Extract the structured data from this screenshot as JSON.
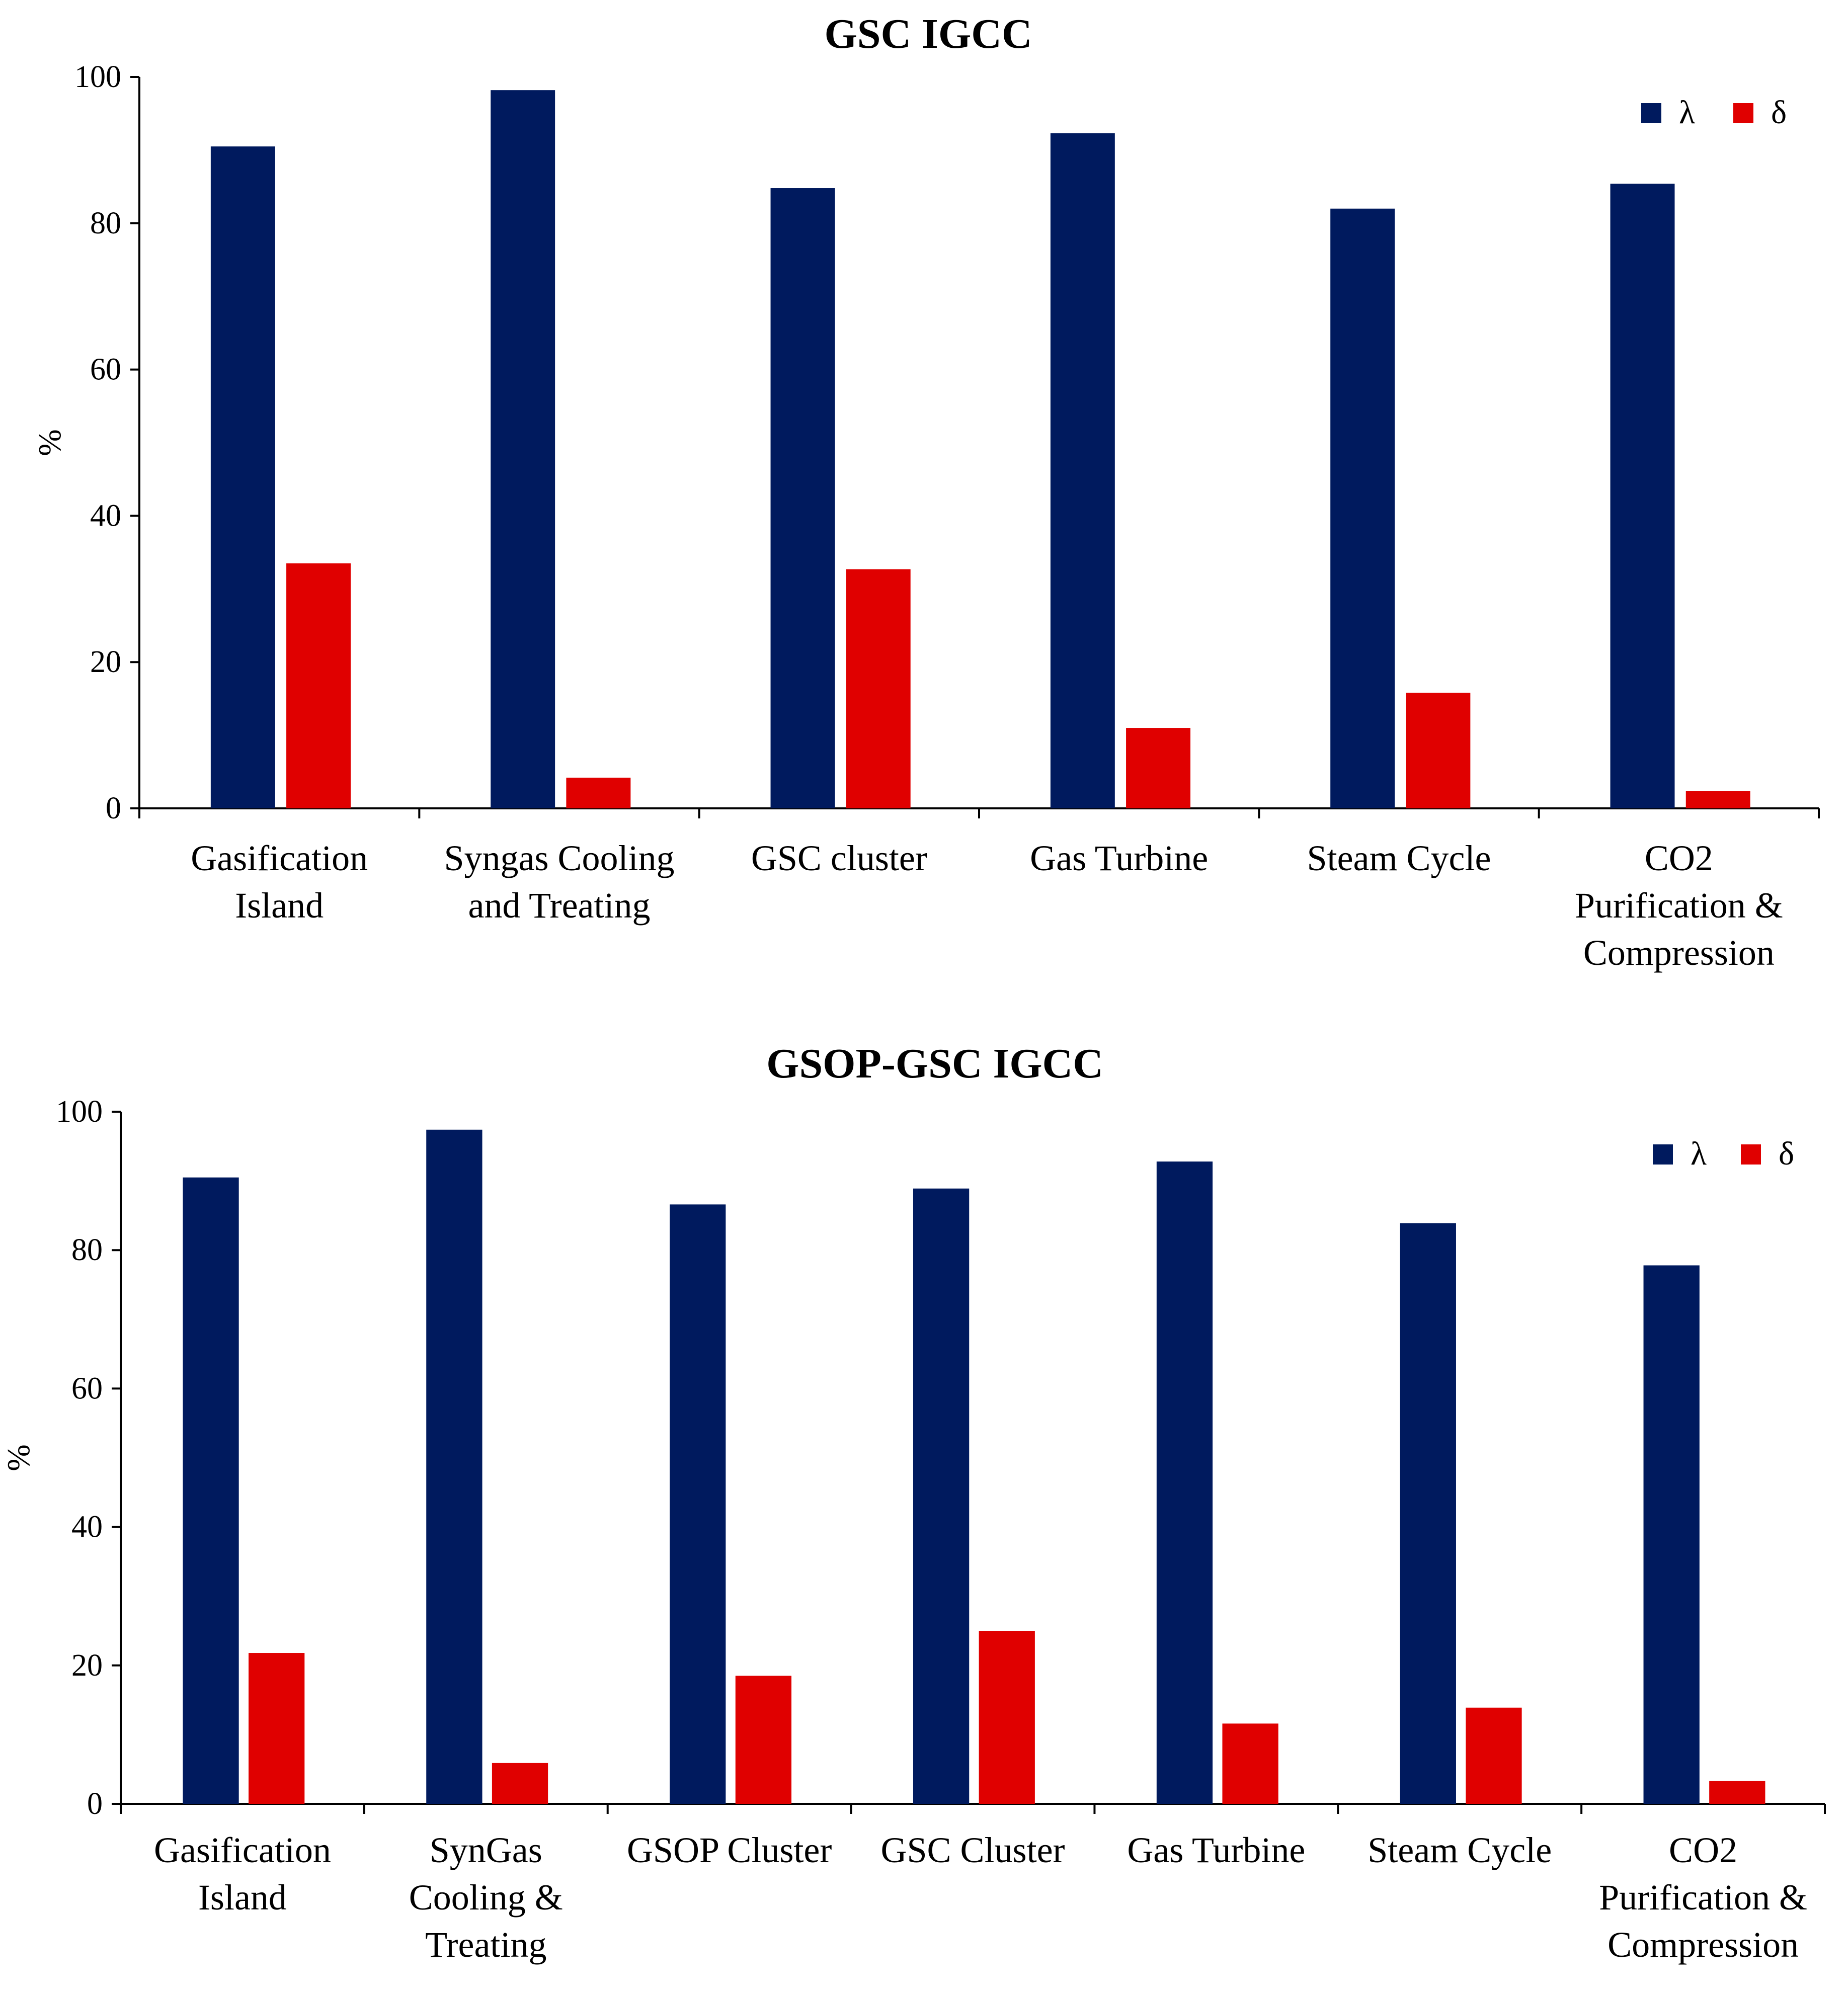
{
  "colors": {
    "lambda": "#001a5e",
    "delta": "#e00000"
  },
  "chart_data": [
    {
      "type": "bar",
      "title": "GSC IGCC",
      "xlabel": "",
      "ylabel": "%",
      "ylim": [
        0,
        100
      ],
      "yticks": [
        "0",
        "20",
        "40",
        "60",
        "80",
        "100"
      ],
      "legend_position": "top-right",
      "categories": [
        [
          "Gasification",
          "Island"
        ],
        [
          "Syngas Cooling",
          "and Treating"
        ],
        [
          "GSC cluster"
        ],
        [
          "Gas Turbine"
        ],
        [
          "Steam Cycle"
        ],
        [
          "CO2",
          "Purification &",
          "Compression"
        ]
      ],
      "series": [
        {
          "name": "λ",
          "values": [
            90.5,
            98.2,
            84.8,
            92.3,
            82.0,
            85.4
          ]
        },
        {
          "name": "δ",
          "values": [
            33.5,
            4.2,
            32.7,
            11.0,
            15.8,
            2.4
          ]
        }
      ]
    },
    {
      "type": "bar",
      "title": "GSOP-GSC IGCC",
      "xlabel": "",
      "ylabel": "%",
      "ylim": [
        0,
        100
      ],
      "yticks": [
        "0",
        "20",
        "40",
        "60",
        "80",
        "100"
      ],
      "legend_position": "top-right",
      "categories": [
        [
          "Gasification",
          "Island"
        ],
        [
          "SynGas",
          "Cooling &",
          "Treating"
        ],
        [
          "GSOP Cluster"
        ],
        [
          "GSC Cluster"
        ],
        [
          "Gas Turbine"
        ],
        [
          "Steam Cycle"
        ],
        [
          "CO2",
          "Purification &",
          "Compression"
        ]
      ],
      "series": [
        {
          "name": "λ",
          "values": [
            90.5,
            97.4,
            86.6,
            88.9,
            92.8,
            83.9,
            77.8
          ]
        },
        {
          "name": "δ",
          "values": [
            21.8,
            5.9,
            18.5,
            25.0,
            11.6,
            13.9,
            3.3
          ]
        }
      ]
    }
  ]
}
